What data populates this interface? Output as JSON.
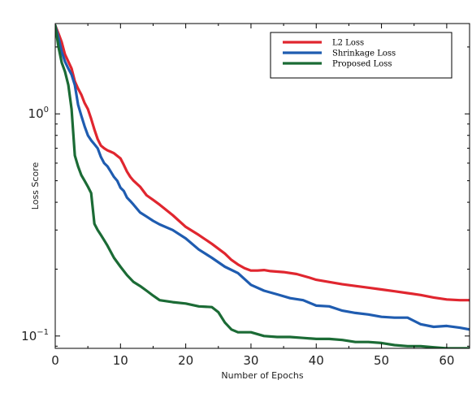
{
  "chart_data": {
    "type": "line",
    "xlabel": "Number of Epochs",
    "ylabel": "Loss Score",
    "xlim": [
      0,
      63.5
    ],
    "ylim": [
      0.088,
      2.55
    ],
    "yscale": "log",
    "xticks": [
      0,
      10,
      20,
      30,
      40,
      50,
      60
    ],
    "xtick_labels": [
      "0",
      "10",
      "20",
      "30",
      "40",
      "50",
      "60"
    ],
    "yticks": [
      1.0,
      0.1
    ],
    "ytick_labels": [
      "10^0",
      "10^-1"
    ],
    "legend_position": "top-right",
    "grid": false,
    "series": [
      {
        "name": "L2 Loss",
        "color": "#e0262f",
        "x": [
          0,
          0.5,
          1,
          1.5,
          2,
          2.5,
          3,
          3.5,
          4,
          4.5,
          5,
          5.5,
          6,
          6.5,
          7,
          7.5,
          8,
          8.5,
          9,
          10,
          10.5,
          11,
          11.5,
          12,
          13,
          14,
          15,
          16,
          18,
          20,
          22,
          24,
          26,
          27,
          28,
          29,
          30,
          31,
          32,
          33,
          35,
          37,
          39,
          40,
          42,
          44,
          46,
          48,
          50,
          52,
          54,
          56,
          58,
          60,
          62,
          63.5
        ],
        "values": [
          2.5,
          2.3,
          2.1,
          1.85,
          1.72,
          1.6,
          1.4,
          1.3,
          1.22,
          1.12,
          1.05,
          0.95,
          0.85,
          0.77,
          0.72,
          0.7,
          0.685,
          0.675,
          0.665,
          0.63,
          0.59,
          0.55,
          0.52,
          0.5,
          0.47,
          0.43,
          0.41,
          0.39,
          0.35,
          0.31,
          0.285,
          0.26,
          0.235,
          0.22,
          0.21,
          0.202,
          0.197,
          0.197,
          0.198,
          0.196,
          0.194,
          0.19,
          0.183,
          0.179,
          0.175,
          0.171,
          0.168,
          0.165,
          0.162,
          0.159,
          0.156,
          0.153,
          0.149,
          0.146,
          0.145,
          0.145
        ]
      },
      {
        "name": "Shrinkage Loss",
        "color": "#1f5cb0",
        "x": [
          0,
          0.5,
          1,
          1.5,
          2,
          2.5,
          3,
          3.5,
          4,
          4.5,
          5,
          5.5,
          6,
          6.5,
          7,
          7.5,
          8,
          8.5,
          9,
          9.5,
          10,
          10.5,
          11,
          11.5,
          12,
          13,
          14,
          15,
          16,
          18,
          20,
          22,
          24,
          26,
          28,
          30,
          32,
          34,
          36,
          38,
          40,
          42,
          44,
          46,
          48,
          50,
          52,
          54,
          56,
          58,
          60,
          62,
          63.5
        ],
        "values": [
          2.5,
          2.2,
          1.9,
          1.72,
          1.6,
          1.5,
          1.35,
          1.1,
          0.98,
          0.88,
          0.8,
          0.76,
          0.73,
          0.7,
          0.64,
          0.6,
          0.58,
          0.55,
          0.52,
          0.5,
          0.465,
          0.45,
          0.42,
          0.405,
          0.39,
          0.36,
          0.345,
          0.33,
          0.318,
          0.3,
          0.275,
          0.245,
          0.225,
          0.205,
          0.192,
          0.17,
          0.16,
          0.154,
          0.148,
          0.145,
          0.137,
          0.136,
          0.13,
          0.127,
          0.125,
          0.122,
          0.121,
          0.121,
          0.113,
          0.11,
          0.111,
          0.109,
          0.107
        ]
      },
      {
        "name": "Proposed Loss",
        "color": "#1b6b35",
        "x": [
          0,
          0.5,
          1,
          1.5,
          2,
          2.5,
          3,
          3.5,
          4,
          4.5,
          5,
          5.5,
          6,
          6.5,
          7,
          7.5,
          8,
          9,
          10,
          11,
          12,
          13,
          14,
          15,
          16,
          18,
          20,
          22,
          24,
          25,
          26,
          27,
          28,
          30,
          32,
          34,
          36,
          38,
          40,
          42,
          44,
          46,
          48,
          50,
          52,
          54,
          56,
          58,
          60,
          62,
          63.5
        ],
        "values": [
          2.5,
          2.0,
          1.7,
          1.55,
          1.35,
          1.05,
          0.65,
          0.58,
          0.53,
          0.5,
          0.47,
          0.44,
          0.32,
          0.3,
          0.285,
          0.27,
          0.255,
          0.225,
          0.205,
          0.188,
          0.175,
          0.168,
          0.16,
          0.152,
          0.145,
          0.142,
          0.14,
          0.136,
          0.135,
          0.128,
          0.115,
          0.107,
          0.104,
          0.104,
          0.1,
          0.099,
          0.099,
          0.098,
          0.097,
          0.097,
          0.096,
          0.094,
          0.094,
          0.093,
          0.091,
          0.09,
          0.09,
          0.089,
          0.088,
          0.088,
          0.088
        ]
      }
    ]
  }
}
